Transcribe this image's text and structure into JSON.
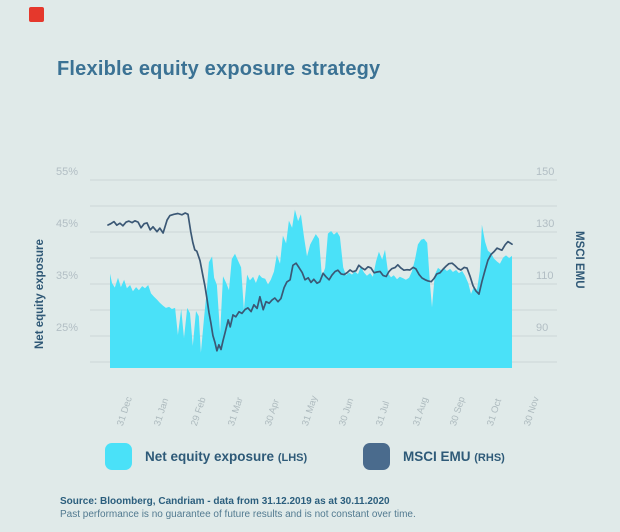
{
  "page": {
    "title": "Flexible equity exposure strategy"
  },
  "brand": {
    "logo_color": "#e5382c"
  },
  "colors": {
    "background": "#e0eae9",
    "title": "#3b7294",
    "gridline": "#ccd7d7",
    "area_fill": "#4ae1f8",
    "line_stroke": "#3b5875",
    "legend_swatch_dark": "#4a6b8d",
    "tick_label": "#b2bec4"
  },
  "chart_data": {
    "type": "area+line",
    "title": "Flexible equity exposure strategy",
    "grid": true,
    "legend_position": "bottom",
    "left_axis": {
      "title": "Net equity exposure",
      "unit": "%",
      "tick_labels": [
        "55%",
        "45%",
        "35%",
        "25%"
      ],
      "tick_values": [
        55,
        45,
        35,
        25
      ],
      "gridline_values": [
        55,
        50,
        45,
        40,
        35,
        30,
        25,
        20
      ],
      "range": [
        18.8,
        55
      ]
    },
    "right_axis": {
      "title": "MSCI EMU",
      "tick_labels": [
        "150",
        "130",
        "110",
        "90"
      ],
      "tick_values": [
        150,
        130,
        110,
        90
      ],
      "range": [
        77.5,
        150
      ]
    },
    "x_axis": {
      "tick_labels": [
        "31 Dec",
        "31 Jan",
        "29 Feb",
        "31 Mar",
        "30 Apr",
        "31 May",
        "30 Jun",
        "31 Jul",
        "31 Aug",
        "30 Sep",
        "31 Oct",
        "30 Nov"
      ],
      "period": "31.12.2019 - 30.11.2020"
    },
    "series": [
      {
        "name": "Net equity exposure",
        "axis": "left",
        "style": "area",
        "unit": "%",
        "color": "#4ae1f8",
        "points": [
          [
            0.0,
            37
          ],
          [
            0.005,
            35.2
          ],
          [
            0.012,
            34.3
          ],
          [
            0.02,
            36.2
          ],
          [
            0.027,
            34.4
          ],
          [
            0.035,
            35.8
          ],
          [
            0.042,
            34.2
          ],
          [
            0.05,
            34.8
          ],
          [
            0.057,
            33.6
          ],
          [
            0.065,
            34.4
          ],
          [
            0.072,
            33.8
          ],
          [
            0.08,
            34.6
          ],
          [
            0.087,
            34.2
          ],
          [
            0.095,
            34.8
          ],
          [
            0.102,
            33.2
          ],
          [
            0.109,
            32.6
          ],
          [
            0.117,
            32
          ],
          [
            0.124,
            31.4
          ],
          [
            0.132,
            30.8
          ],
          [
            0.139,
            30.4
          ],
          [
            0.147,
            30.6
          ],
          [
            0.154,
            30.2
          ],
          [
            0.162,
            30.4
          ],
          [
            0.169,
            25.2
          ],
          [
            0.177,
            30.2
          ],
          [
            0.184,
            24.6
          ],
          [
            0.192,
            30.4
          ],
          [
            0.199,
            29.4
          ],
          [
            0.206,
            23.1
          ],
          [
            0.214,
            29.8
          ],
          [
            0.221,
            28.8
          ],
          [
            0.226,
            21.8
          ],
          [
            0.234,
            28.6
          ],
          [
            0.241,
            34
          ],
          [
            0.246,
            39.2
          ],
          [
            0.254,
            40.3
          ],
          [
            0.259,
            36.2
          ],
          [
            0.266,
            34.8
          ],
          [
            0.274,
            25.5
          ],
          [
            0.281,
            36.5
          ],
          [
            0.289,
            35.2
          ],
          [
            0.296,
            33.8
          ],
          [
            0.303,
            39.8
          ],
          [
            0.311,
            40.8
          ],
          [
            0.318,
            39.6
          ],
          [
            0.326,
            38.2
          ],
          [
            0.333,
            30
          ],
          [
            0.341,
            36.8
          ],
          [
            0.348,
            35.7
          ],
          [
            0.356,
            36.4
          ],
          [
            0.363,
            35.2
          ],
          [
            0.371,
            36.8
          ],
          [
            0.378,
            36.2
          ],
          [
            0.386,
            36
          ],
          [
            0.393,
            34.9
          ],
          [
            0.4,
            35.8
          ],
          [
            0.408,
            37.4
          ],
          [
            0.415,
            40.6
          ],
          [
            0.423,
            38.9
          ],
          [
            0.43,
            44.3
          ],
          [
            0.438,
            42.8
          ],
          [
            0.445,
            47.2
          ],
          [
            0.453,
            45.8
          ],
          [
            0.46,
            49.3
          ],
          [
            0.468,
            47.1
          ],
          [
            0.475,
            48.4
          ],
          [
            0.483,
            43.8
          ],
          [
            0.49,
            40.3
          ],
          [
            0.498,
            42.6
          ],
          [
            0.505,
            43.6
          ],
          [
            0.512,
            44.6
          ],
          [
            0.52,
            43.7
          ],
          [
            0.527,
            36.4
          ],
          [
            0.535,
            38.1
          ],
          [
            0.542,
            44.7
          ],
          [
            0.55,
            45.2
          ],
          [
            0.557,
            44.5
          ],
          [
            0.565,
            45
          ],
          [
            0.572,
            44.1
          ],
          [
            0.58,
            38.2
          ],
          [
            0.587,
            36.7
          ],
          [
            0.595,
            37.2
          ],
          [
            0.602,
            36.8
          ],
          [
            0.609,
            37.4
          ],
          [
            0.617,
            36.9
          ],
          [
            0.624,
            38.3
          ],
          [
            0.632,
            37.2
          ],
          [
            0.639,
            36.6
          ],
          [
            0.647,
            37.1
          ],
          [
            0.654,
            36.4
          ],
          [
            0.662,
            39.4
          ],
          [
            0.669,
            41.2
          ],
          [
            0.677,
            39.7
          ],
          [
            0.684,
            41.6
          ],
          [
            0.692,
            37
          ],
          [
            0.699,
            36.3
          ],
          [
            0.706,
            36.7
          ],
          [
            0.714,
            35.9
          ],
          [
            0.721,
            36.4
          ],
          [
            0.729,
            36.1
          ],
          [
            0.736,
            35.8
          ],
          [
            0.744,
            36.2
          ],
          [
            0.751,
            37.4
          ],
          [
            0.759,
            39.8
          ],
          [
            0.766,
            42.6
          ],
          [
            0.774,
            43.5
          ],
          [
            0.781,
            43.7
          ],
          [
            0.789,
            42.9
          ],
          [
            0.796,
            35
          ],
          [
            0.801,
            30.5
          ],
          [
            0.808,
            36.8
          ],
          [
            0.816,
            38.1
          ],
          [
            0.823,
            37.7
          ],
          [
            0.831,
            38
          ],
          [
            0.838,
            37.5
          ],
          [
            0.846,
            37.9
          ],
          [
            0.853,
            37.3
          ],
          [
            0.861,
            37.7
          ],
          [
            0.868,
            37.1
          ],
          [
            0.876,
            37.5
          ],
          [
            0.883,
            36.6
          ],
          [
            0.891,
            35.2
          ],
          [
            0.898,
            33.1
          ],
          [
            0.905,
            34.4
          ],
          [
            0.913,
            33.9
          ],
          [
            0.92,
            37.5
          ],
          [
            0.925,
            46.4
          ],
          [
            0.933,
            43.1
          ],
          [
            0.94,
            41.4
          ],
          [
            0.948,
            40.9
          ],
          [
            0.955,
            39.9
          ],
          [
            0.963,
            39.3
          ],
          [
            0.97,
            38.9
          ],
          [
            0.978,
            40.1
          ],
          [
            0.985,
            40.5
          ],
          [
            0.993,
            40
          ],
          [
            1.0,
            40.4
          ]
        ]
      },
      {
        "name": "MSCI EMU",
        "axis": "right",
        "style": "line",
        "unit": "index",
        "color": "#3b5875",
        "points": [
          [
            -0.005,
            132.7
          ],
          [
            0.002,
            133.2
          ],
          [
            0.01,
            134
          ],
          [
            0.017,
            132.6
          ],
          [
            0.025,
            133.4
          ],
          [
            0.032,
            132.4
          ],
          [
            0.04,
            133.8
          ],
          [
            0.047,
            134.2
          ],
          [
            0.055,
            133.6
          ],
          [
            0.062,
            134.3
          ],
          [
            0.07,
            133.8
          ],
          [
            0.077,
            131.6
          ],
          [
            0.085,
            133.2
          ],
          [
            0.092,
            133.5
          ],
          [
            0.1,
            130.8
          ],
          [
            0.107,
            132
          ],
          [
            0.117,
            130.1
          ],
          [
            0.124,
            131.5
          ],
          [
            0.132,
            129.6
          ],
          [
            0.142,
            134.6
          ],
          [
            0.149,
            136.3
          ],
          [
            0.159,
            136.8
          ],
          [
            0.169,
            137.1
          ],
          [
            0.179,
            136.6
          ],
          [
            0.187,
            137.3
          ],
          [
            0.194,
            136.8
          ],
          [
            0.201,
            130
          ],
          [
            0.206,
            126
          ],
          [
            0.211,
            123.1
          ],
          [
            0.216,
            122.6
          ],
          [
            0.224,
            119
          ],
          [
            0.231,
            113.2
          ],
          [
            0.236,
            109.3
          ],
          [
            0.241,
            104.5
          ],
          [
            0.246,
            99.2
          ],
          [
            0.251,
            95
          ],
          [
            0.256,
            90.2
          ],
          [
            0.261,
            87.6
          ],
          [
            0.266,
            84.3
          ],
          [
            0.271,
            86.6
          ],
          [
            0.276,
            84.8
          ],
          [
            0.281,
            88.2
          ],
          [
            0.286,
            91.2
          ],
          [
            0.294,
            96.2
          ],
          [
            0.299,
            93.5
          ],
          [
            0.306,
            98.1
          ],
          [
            0.313,
            97.4
          ],
          [
            0.321,
            99.3
          ],
          [
            0.328,
            98.7
          ],
          [
            0.336,
            100.2
          ],
          [
            0.343,
            100.8
          ],
          [
            0.351,
            99.4
          ],
          [
            0.358,
            102
          ],
          [
            0.366,
            100.6
          ],
          [
            0.373,
            105.1
          ],
          [
            0.381,
            100.1
          ],
          [
            0.388,
            103.2
          ],
          [
            0.396,
            102.6
          ],
          [
            0.403,
            103.8
          ],
          [
            0.41,
            104.6
          ],
          [
            0.418,
            103.2
          ],
          [
            0.425,
            104.4
          ],
          [
            0.433,
            108.6
          ],
          [
            0.44,
            110.8
          ],
          [
            0.448,
            111.6
          ],
          [
            0.455,
            117.2
          ],
          [
            0.463,
            118
          ],
          [
            0.47,
            116.4
          ],
          [
            0.478,
            114.4
          ],
          [
            0.485,
            111.6
          ],
          [
            0.493,
            112.4
          ],
          [
            0.5,
            110.6
          ],
          [
            0.507,
            111.8
          ],
          [
            0.515,
            110.3
          ],
          [
            0.522,
            110.9
          ],
          [
            0.53,
            114.1
          ],
          [
            0.537,
            112.8
          ],
          [
            0.545,
            111.6
          ],
          [
            0.552,
            113.4
          ],
          [
            0.56,
            114.8
          ],
          [
            0.567,
            115.3
          ],
          [
            0.575,
            113.9
          ],
          [
            0.582,
            113.6
          ],
          [
            0.59,
            114.4
          ],
          [
            0.597,
            115.4
          ],
          [
            0.604,
            114.7
          ],
          [
            0.612,
            115.1
          ],
          [
            0.619,
            117.2
          ],
          [
            0.627,
            116.1
          ],
          [
            0.634,
            115.5
          ],
          [
            0.642,
            116.6
          ],
          [
            0.649,
            116.2
          ],
          [
            0.657,
            114.3
          ],
          [
            0.664,
            114.6
          ],
          [
            0.672,
            114.8
          ],
          [
            0.679,
            113.3
          ],
          [
            0.687,
            112.9
          ],
          [
            0.694,
            114.8
          ],
          [
            0.701,
            115.9
          ],
          [
            0.709,
            116.3
          ],
          [
            0.716,
            117.4
          ],
          [
            0.724,
            116.1
          ],
          [
            0.731,
            115.3
          ],
          [
            0.739,
            115.5
          ],
          [
            0.746,
            115.4
          ],
          [
            0.754,
            116.4
          ],
          [
            0.761,
            115.8
          ],
          [
            0.769,
            113.6
          ],
          [
            0.776,
            112.3
          ],
          [
            0.784,
            111.6
          ],
          [
            0.791,
            111.2
          ],
          [
            0.799,
            110.9
          ],
          [
            0.806,
            112.1
          ],
          [
            0.813,
            113.9
          ],
          [
            0.821,
            114.3
          ],
          [
            0.828,
            115.6
          ],
          [
            0.836,
            116.9
          ],
          [
            0.843,
            117.8
          ],
          [
            0.851,
            118
          ],
          [
            0.858,
            117.1
          ],
          [
            0.866,
            115.9
          ],
          [
            0.873,
            115.4
          ],
          [
            0.881,
            116.4
          ],
          [
            0.888,
            116.1
          ],
          [
            0.896,
            112.8
          ],
          [
            0.903,
            109.4
          ],
          [
            0.91,
            107.4
          ],
          [
            0.918,
            106.1
          ],
          [
            0.925,
            110.9
          ],
          [
            0.933,
            115.4
          ],
          [
            0.94,
            119.1
          ],
          [
            0.948,
            121.4
          ],
          [
            0.955,
            122.4
          ],
          [
            0.963,
            123.8
          ],
          [
            0.97,
            123.3
          ],
          [
            0.975,
            123
          ],
          [
            0.983,
            125.1
          ],
          [
            0.99,
            126.3
          ],
          [
            1.0,
            125.3
          ]
        ]
      }
    ]
  },
  "legend": {
    "items": [
      {
        "label": "Net equity exposure",
        "suffix": "(LHS)",
        "swatch": "#4ae1f8"
      },
      {
        "label": "MSCI EMU",
        "suffix": "(RHS)",
        "swatch": "#4a6b8d"
      }
    ]
  },
  "footer": {
    "source": "Source: Bloomberg, Candriam - data from 31.12.2019 as at 30.11.2020",
    "disclaimer": "Past performance is no guarantee of future results and is not constant over time."
  }
}
